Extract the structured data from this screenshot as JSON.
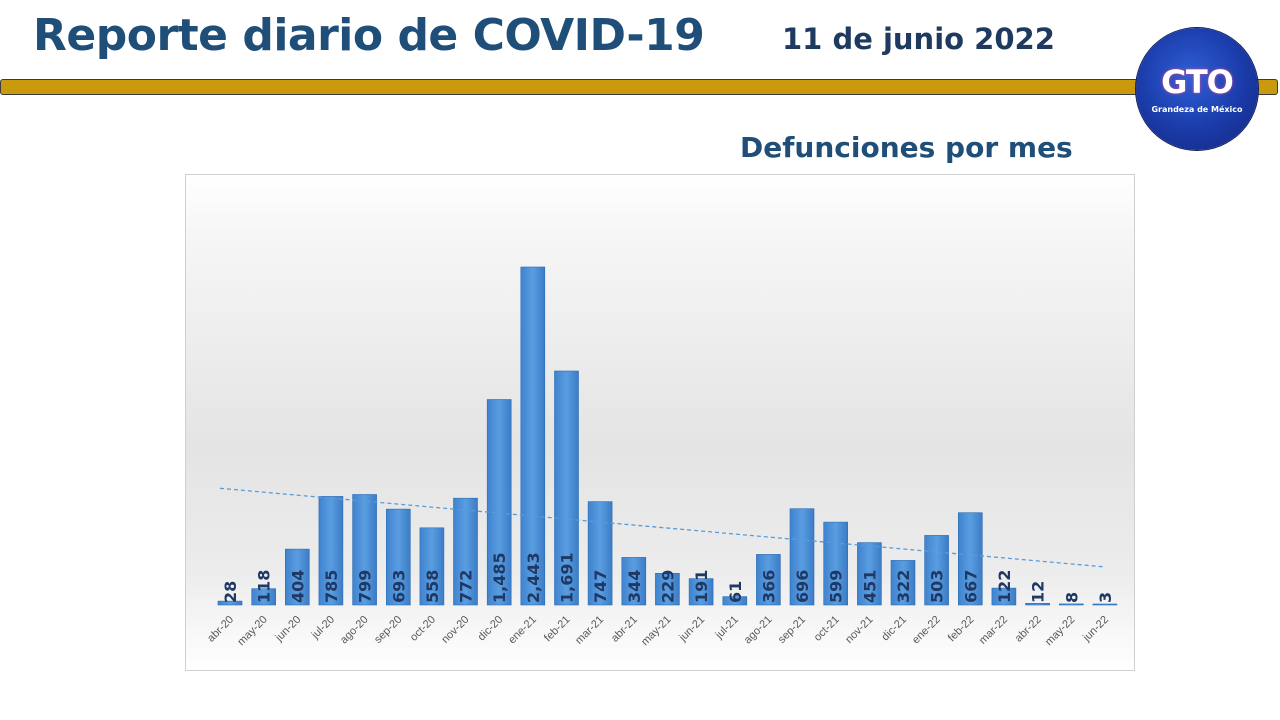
{
  "header": {
    "title": "Reporte diario de COVID-19",
    "date": "11 de junio 2022"
  },
  "logo": {
    "text": "GTO",
    "subtitle": "Grandeza de México"
  },
  "colors": {
    "title": "#1f4e79",
    "gold_bar": "#c99a0e",
    "bar": "#4a8fd6",
    "label": "#1f3864",
    "trend": "#5b9bd5"
  },
  "chart_data": {
    "type": "bar",
    "title": "Defunciones por mes",
    "xlabel": "",
    "ylabel": "",
    "grid": false,
    "legend": "none",
    "trendline": "linear",
    "ylim": [
      0,
      3000
    ],
    "categories": [
      "abr-20",
      "may-20",
      "jun-20",
      "jul-20",
      "ago-20",
      "sep-20",
      "oct-20",
      "nov-20",
      "dic-20",
      "ene-21",
      "feb-21",
      "mar-21",
      "abr-21",
      "may-21",
      "jun-21",
      "jul-21",
      "ago-21",
      "sep-21",
      "oct-21",
      "nov-21",
      "dic-21",
      "ene-22",
      "feb-22",
      "mar-22",
      "abr-22",
      "may-22",
      "jun-22"
    ],
    "values": [
      28,
      118,
      404,
      785,
      799,
      693,
      558,
      772,
      1485,
      2443,
      1691,
      747,
      344,
      229,
      191,
      61,
      366,
      696,
      599,
      451,
      322,
      503,
      667,
      122,
      12,
      8,
      3
    ],
    "data_labels": [
      "28",
      "118",
      "404",
      "785",
      "799",
      "693",
      "558",
      "772",
      "1,485",
      "2,443",
      "1,691",
      "747",
      "344",
      "229",
      "191",
      "61",
      "366",
      "696",
      "599",
      "451",
      "322",
      "503",
      "667",
      "122",
      "12",
      "8",
      "3"
    ]
  }
}
